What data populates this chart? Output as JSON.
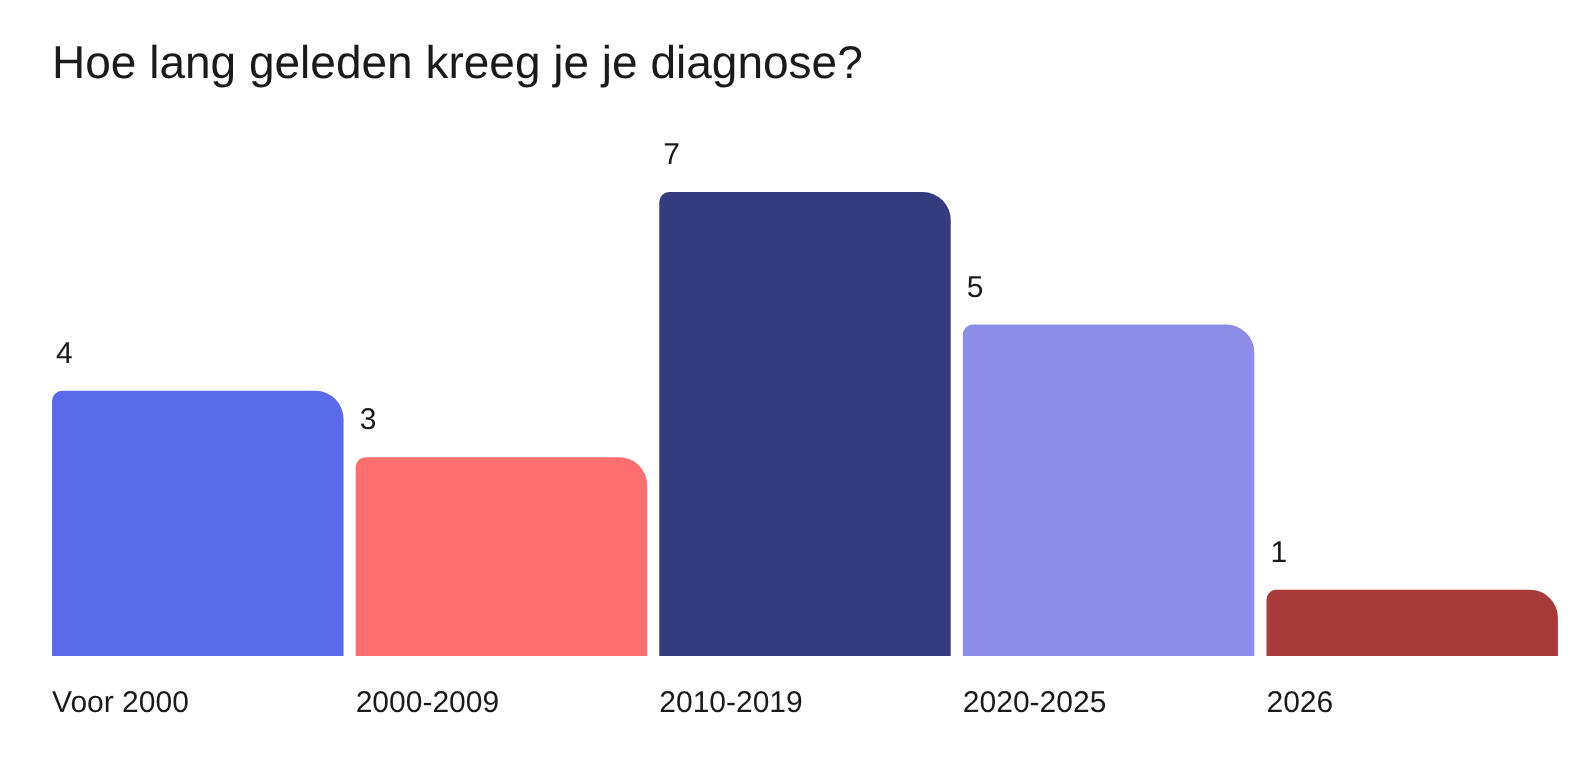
{
  "chart_data": {
    "type": "bar",
    "title": "Hoe lang geleden kreeg je je diagnose?",
    "categories": [
      "Voor 2000",
      "2000-2009",
      "2010-2019",
      "2020-2025",
      "2026"
    ],
    "values": [
      4,
      3,
      7,
      5,
      1
    ],
    "colors": [
      "#5a6ae8",
      "#ff6f6f",
      "#333c7e",
      "#8d8de8",
      "#a83a3a"
    ],
    "data_labels": true,
    "legend": false
  }
}
